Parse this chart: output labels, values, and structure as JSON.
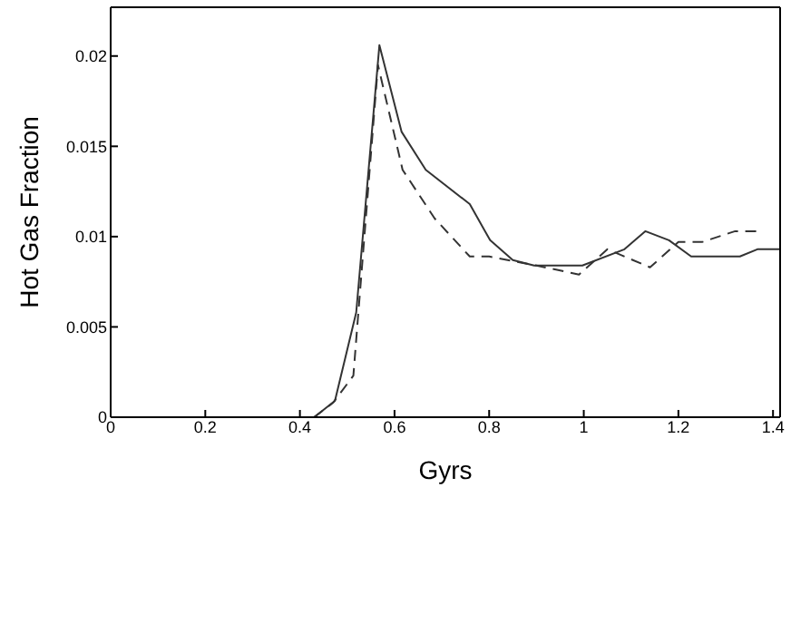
{
  "chart_data": {
    "type": "line",
    "xlabel": "Gyrs",
    "ylabel": "Hot Gas Fraction",
    "xlim": [
      0,
      1.415
    ],
    "ylim": [
      0,
      0.0227
    ],
    "xticks": [
      0,
      0.2,
      0.4,
      0.6,
      0.8,
      1,
      1.2,
      1.4
    ],
    "yticks": [
      0,
      0.005,
      0.01,
      0.015,
      0.02
    ],
    "marker": "none",
    "series": [
      {
        "color": "#333333",
        "line_style": "solid",
        "x": [
          0.43,
          0.474,
          0.519,
          0.568,
          0.615,
          0.666,
          0.759,
          0.802,
          0.85,
          0.895,
          0.997,
          1.086,
          1.13,
          1.18,
          1.227,
          1.33,
          1.367,
          1.415
        ],
        "values": [
          0,
          0.0009,
          0.0058,
          0.0206,
          0.0158,
          0.0137,
          0.0118,
          0.0098,
          0.0087,
          0.0084,
          0.0084,
          0.0093,
          0.0103,
          0.0098,
          0.0089,
          0.0089,
          0.0093,
          0.0093
        ]
      },
      {
        "color": "#333333",
        "line_style": "dashed",
        "x": [
          0.43,
          0.47,
          0.513,
          0.565,
          0.617,
          0.685,
          0.759,
          0.8,
          0.9,
          0.99,
          1.05,
          1.14,
          1.2,
          1.25,
          1.32,
          1.37
        ],
        "values": [
          0,
          0.0008,
          0.0023,
          0.0195,
          0.0137,
          0.011,
          0.0089,
          0.0089,
          0.0084,
          0.0079,
          0.0093,
          0.0083,
          0.0097,
          0.0097,
          0.0103,
          0.0103
        ]
      }
    ]
  }
}
